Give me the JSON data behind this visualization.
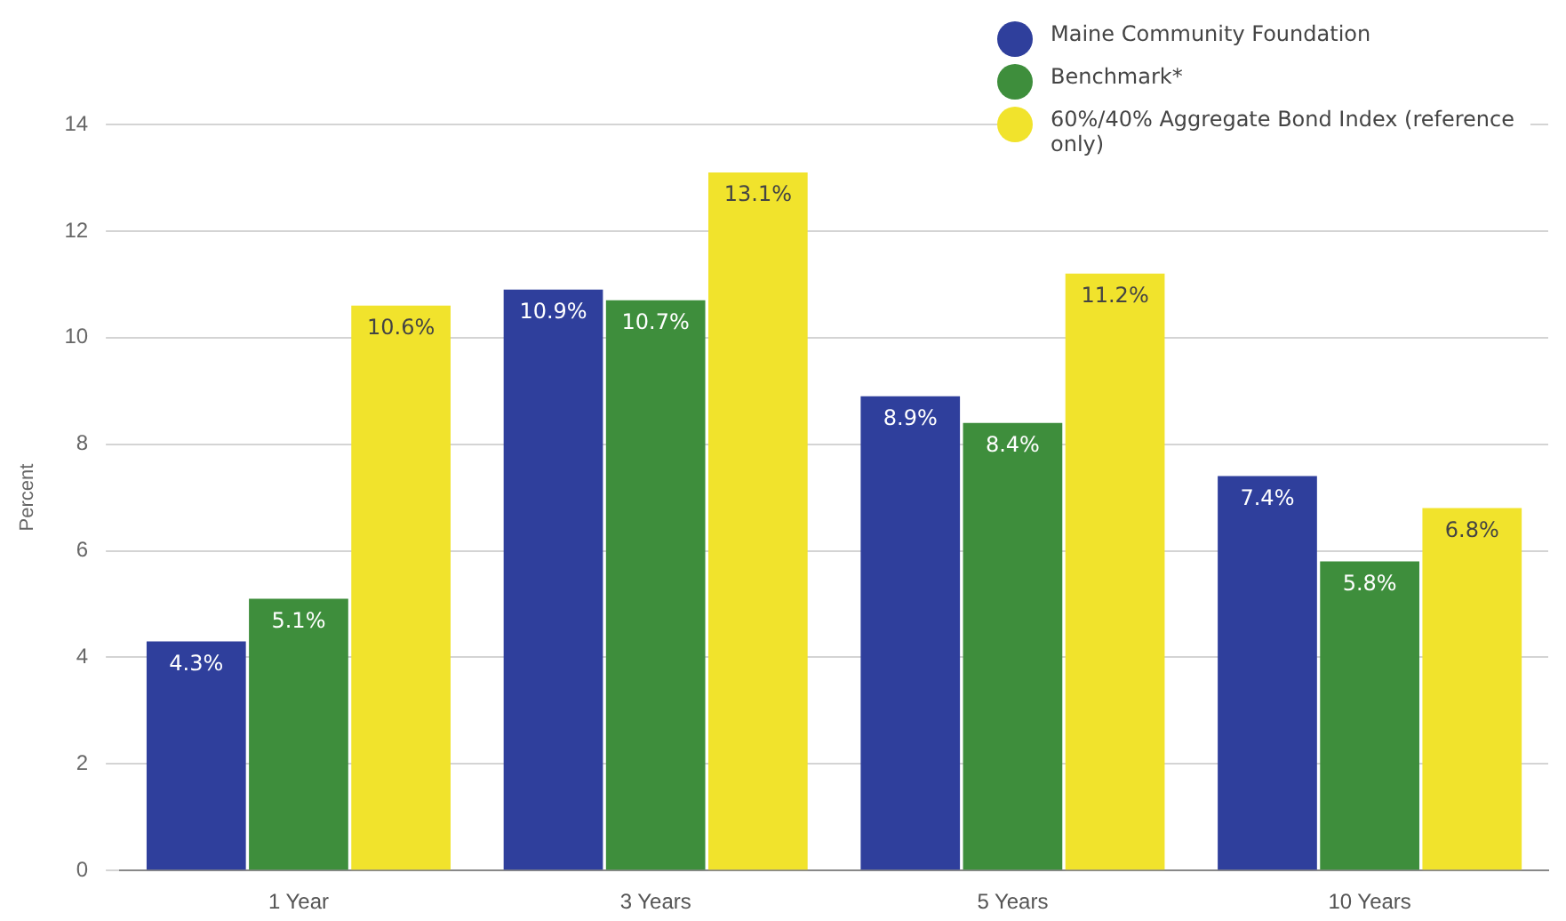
{
  "chart_data": {
    "type": "bar",
    "ylabel": "Percent",
    "categories": [
      "1 Year",
      "3 Years",
      "5 Years",
      "10 Years"
    ],
    "series": [
      {
        "name": "Maine Community Foundation",
        "color": "#2f3f9c",
        "values": [
          4.3,
          10.9,
          8.9,
          7.4
        ],
        "value_labels": [
          "4.3%",
          "10.9%",
          "8.9%",
          "7.4%"
        ]
      },
      {
        "name": "Benchmark*",
        "color": "#3e8e3c",
        "values": [
          5.1,
          10.7,
          8.4,
          5.8
        ],
        "value_labels": [
          "5.1%",
          "10.7%",
          "8.4%",
          "5.8%"
        ]
      },
      {
        "name": "60%/40% Aggregate Bond Index (reference only)",
        "color": "#f1e32c",
        "values": [
          10.6,
          13.1,
          11.2,
          6.8
        ],
        "value_labels": [
          "10.6%",
          "13.1%",
          "11.2%",
          "6.8%"
        ]
      }
    ],
    "ylim": [
      0,
      14
    ],
    "yticks": [
      0,
      2,
      4,
      6,
      8,
      10,
      12,
      14
    ],
    "grid": "y",
    "legend": "top right"
  }
}
